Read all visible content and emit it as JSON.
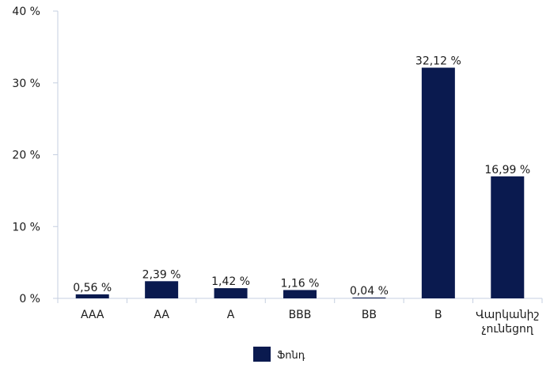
{
  "chart_data": {
    "type": "bar",
    "categories": [
      [
        "AAA"
      ],
      [
        "AA"
      ],
      [
        "A"
      ],
      [
        "BBB"
      ],
      [
        "BB"
      ],
      [
        "B"
      ],
      [
        "Վարկանիշ",
        "չունեցող"
      ]
    ],
    "series": [
      {
        "name": "Ֆոնդ",
        "values": [
          0.56,
          2.39,
          1.42,
          1.16,
          0.04,
          32.12,
          16.99
        ],
        "data_labels": [
          "0,56 %",
          "2,39 %",
          "1,42 %",
          "1,16 %",
          "0,04 %",
          "32,12 %",
          "16,99 %"
        ],
        "color": "#0a1a4f"
      }
    ],
    "ylim": [
      0,
      40
    ],
    "yticks": [
      0,
      10,
      20,
      30,
      40
    ],
    "ytick_labels": [
      "0 %",
      "10 %",
      "20 %",
      "30 %",
      "40 %"
    ],
    "title": "",
    "xlabel": "",
    "ylabel": "",
    "grid": false,
    "legend": "bottom-center",
    "axis_color": "#c5cfe0"
  }
}
